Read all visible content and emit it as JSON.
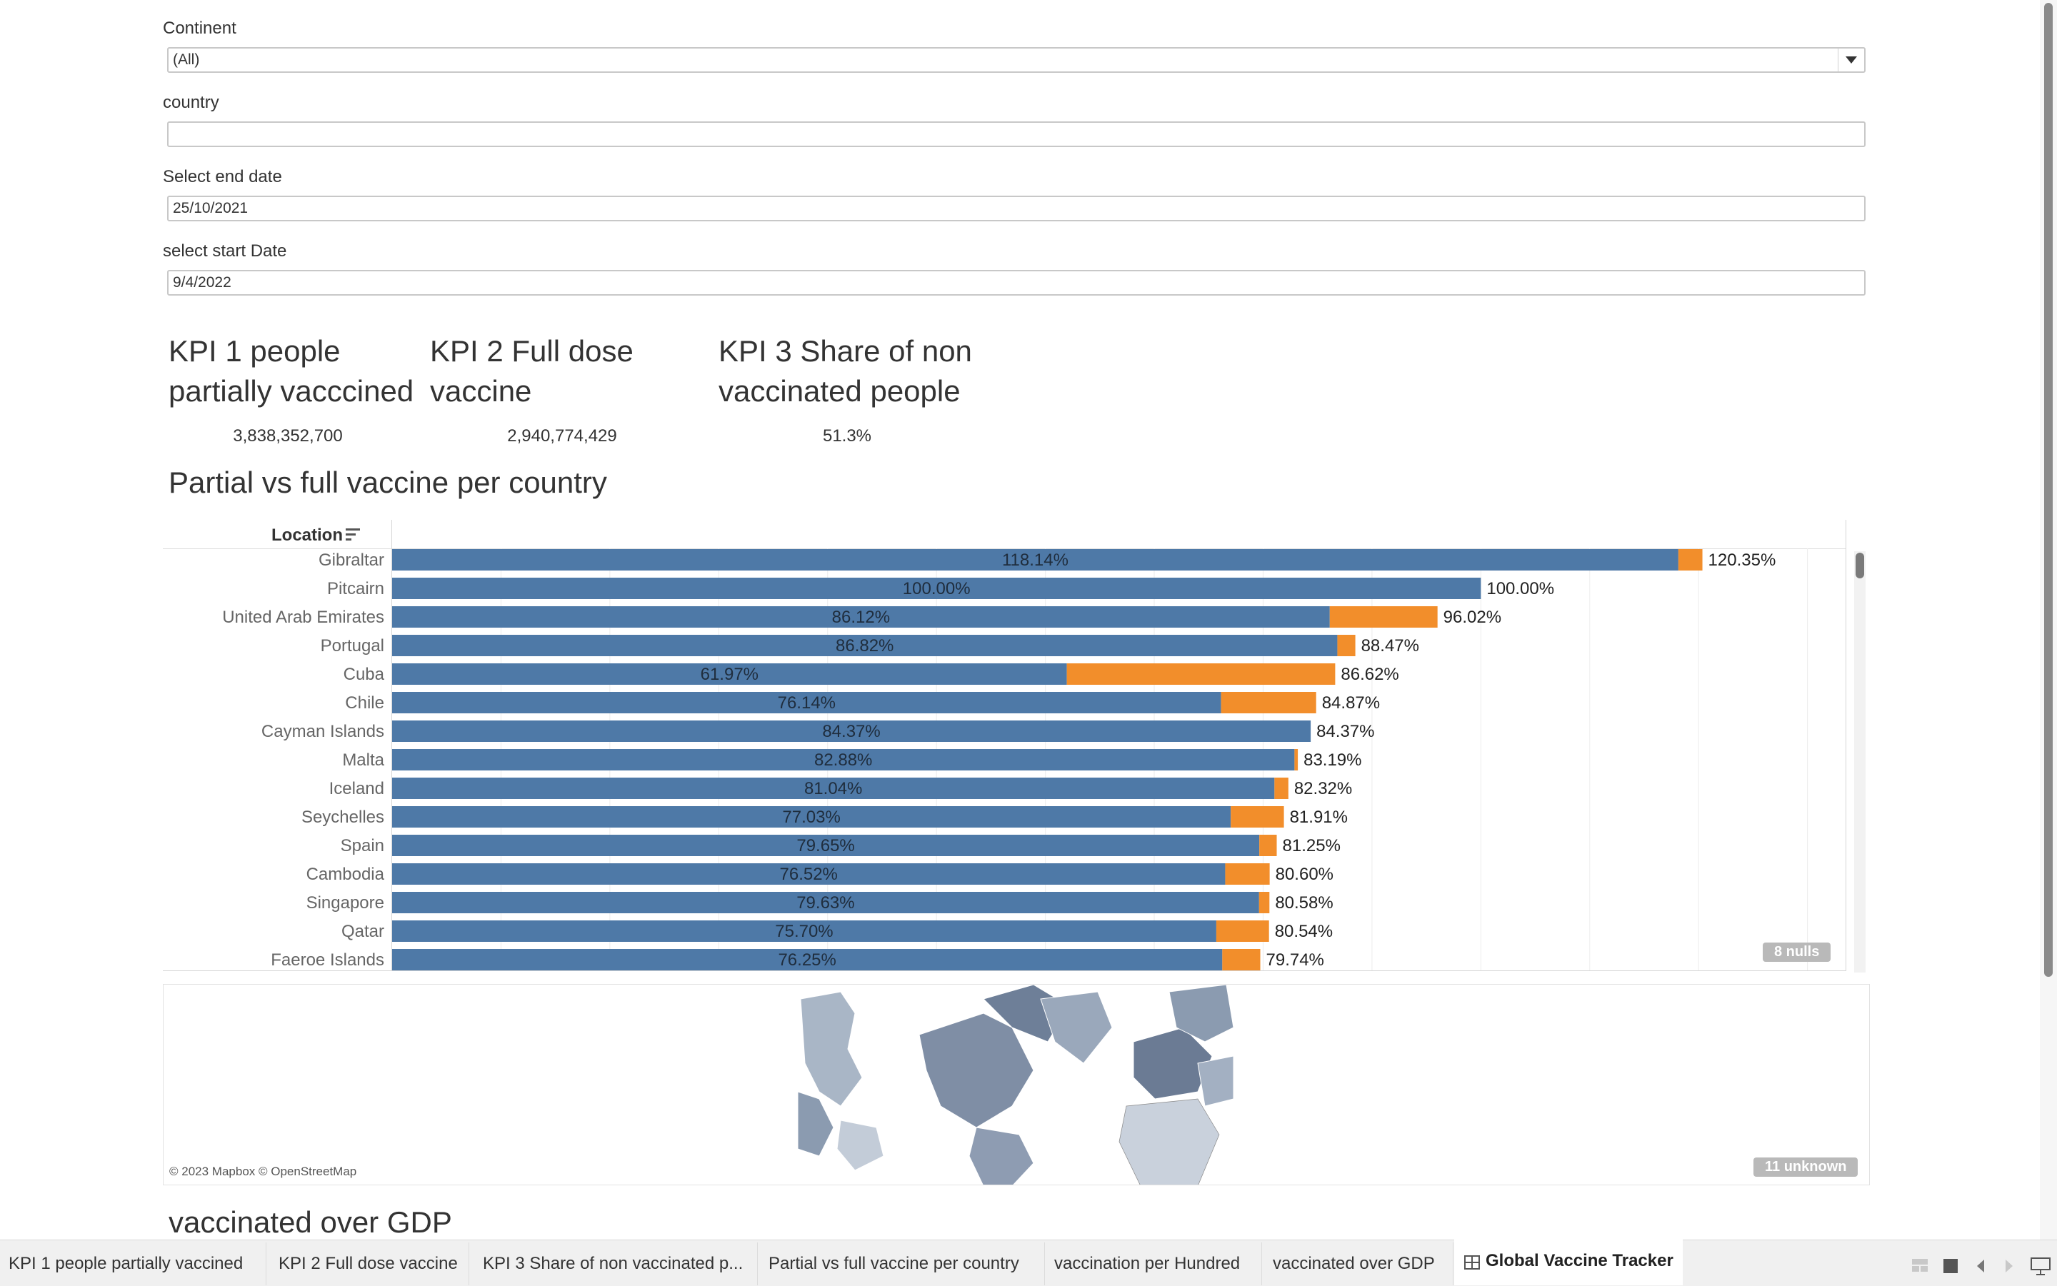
{
  "filters": {
    "continent": {
      "label": "Continent",
      "value": "(All)"
    },
    "country": {
      "label": "country",
      "value": ""
    },
    "end_date": {
      "label": "Select end date",
      "value": "25/10/2021"
    },
    "start_date": {
      "label": "select start Date",
      "value": "9/4/2022"
    }
  },
  "kpis": [
    {
      "title_line1": "KPI 1 people",
      "title_line2": "partially vacccined",
      "value": "3,838,352,700"
    },
    {
      "title_line1": "KPI 2 Full dose",
      "title_line2": "vaccine",
      "value": "2,940,774,429"
    },
    {
      "title_line1": "KPI 3 Share of non",
      "title_line2": "vaccinated people",
      "value": "51.3%"
    }
  ],
  "chart_section": {
    "title": "Partial vs full vaccine per country",
    "column_header": "Location",
    "nulls_badge": "8 nulls"
  },
  "chart_data": {
    "type": "bar",
    "orientation": "horizontal",
    "stacked": true,
    "categories": [
      "Gibraltar",
      "Pitcairn",
      "United Arab Emirates",
      "Portugal",
      "Cuba",
      "Chile",
      "Cayman Islands",
      "Malta",
      "Iceland",
      "Seychelles",
      "Spain",
      "Cambodia",
      "Singapore",
      "Qatar",
      "Faeroe Islands"
    ],
    "series": [
      {
        "values": [
          118.14,
          100.0,
          86.12,
          86.82,
          61.97,
          76.14,
          84.37,
          82.88,
          81.04,
          77.03,
          79.65,
          76.52,
          79.63,
          75.7,
          76.25
        ],
        "color": "#4e79a7"
      },
      {
        "values": [
          2.21,
          0,
          9.9,
          1.65,
          24.65,
          8.73,
          0,
          0.31,
          1.28,
          4.88,
          1.6,
          4.08,
          0.95,
          4.84,
          3.49
        ],
        "color": "#f28e2b"
      }
    ],
    "inner_labels": [
      "118.14%",
      "100.00%",
      "86.12%",
      "86.82%",
      "61.97%",
      "76.14%",
      "84.37%",
      "82.88%",
      "81.04%",
      "77.03%",
      "79.65%",
      "76.52%",
      "79.63%",
      "75.70%",
      "76.25%"
    ],
    "total_labels": [
      "120.35%",
      "100.00%",
      "96.02%",
      "88.47%",
      "86.62%",
      "84.87%",
      "84.37%",
      "83.19%",
      "82.32%",
      "81.91%",
      "81.25%",
      "80.60%",
      "80.58%",
      "80.54%",
      "79.74%"
    ],
    "xlim": [
      0,
      133.5
    ]
  },
  "map": {
    "attribution": "© 2023 Mapbox © OpenStreetMap",
    "unknown_badge": "11 unknown"
  },
  "next_section": {
    "title": "vaccinated over GDP"
  },
  "tabs": [
    "KPI 1 people partially vaccined",
    "KPI 2 Full dose vaccine",
    "KPI 3 Share of non vaccinated p...",
    "Partial vs full vaccine per country",
    "vaccination per Hundred",
    "vaccinated over GDP",
    "Global Vaccine Tracker"
  ],
  "colors": {
    "full": "#4e79a7",
    "partial": "#f28e2b",
    "badge": "#b9b9b9"
  },
  "icons": [
    "dropdown-arrow-icon",
    "sort-icon",
    "dashboard-icon",
    "grid-view-icon",
    "full-view-icon",
    "prev-icon",
    "next-icon",
    "presentation-icon"
  ]
}
